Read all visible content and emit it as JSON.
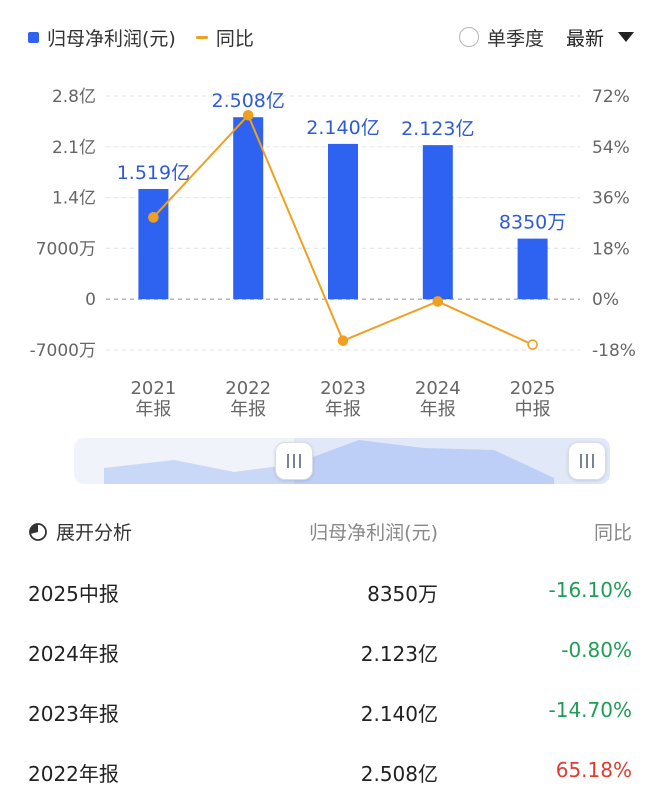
{
  "legend": {
    "bar_label": "归母净利润(元)",
    "line_label": "同比"
  },
  "controls": {
    "single_quarter": "单季度",
    "latest": "最新"
  },
  "colors": {
    "bar": "#2e62f0",
    "line": "#f0a020",
    "negative": "#1f9d55",
    "positive": "#e03c31"
  },
  "chart_data": {
    "type": "bar",
    "categories": [
      [
        "2021",
        "年报"
      ],
      [
        "2022",
        "年报"
      ],
      [
        "2023",
        "年报"
      ],
      [
        "2024",
        "年报"
      ],
      [
        "2025",
        "中报"
      ]
    ],
    "series": [
      {
        "name": "归母净利润(元)",
        "type": "bar",
        "axis": "left",
        "values": [
          151900000,
          250800000,
          214000000,
          212300000,
          83500000
        ],
        "labels": [
          "1.519亿",
          "2.508亿",
          "2.140亿",
          "2.123亿",
          "8350万"
        ]
      },
      {
        "name": "同比",
        "type": "line",
        "axis": "right",
        "values": [
          29.0,
          65.18,
          -14.7,
          -0.8,
          -16.1
        ]
      }
    ],
    "y_left": {
      "ticks": [
        280000000,
        210000000,
        140000000,
        70000000,
        0,
        -70000000
      ],
      "tick_labels": [
        "2.8亿",
        "2.1亿",
        "1.4亿",
        "7000万",
        "0",
        "-7000万"
      ],
      "ylim": [
        -70000000,
        280000000
      ]
    },
    "y_right": {
      "ticks": [
        72,
        54,
        36,
        18,
        0,
        -18
      ],
      "tick_labels": [
        "72%",
        "54%",
        "36%",
        "18%",
        "0%",
        "-18%"
      ],
      "ylim": [
        -18,
        72
      ]
    },
    "grid": true
  },
  "table": {
    "header": {
      "col1": "展开分析",
      "col2": "归母净利润(元)",
      "col3": "同比"
    },
    "rows": [
      {
        "period": "2025中报",
        "value": "8350万",
        "yoy": "-16.10%",
        "sign": "neg"
      },
      {
        "period": "2024年报",
        "value": "2.123亿",
        "yoy": "-0.80%",
        "sign": "neg"
      },
      {
        "period": "2023年报",
        "value": "2.140亿",
        "yoy": "-14.70%",
        "sign": "neg"
      },
      {
        "period": "2022年报",
        "value": "2.508亿",
        "yoy": "65.18%",
        "sign": "pos"
      }
    ]
  }
}
